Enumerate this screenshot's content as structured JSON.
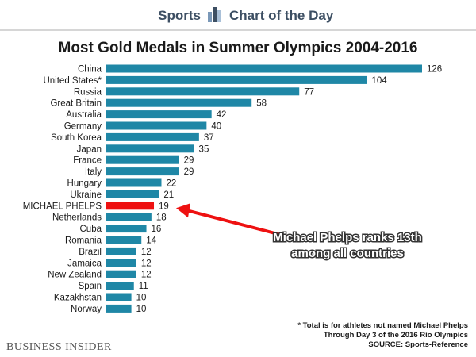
{
  "header": {
    "left_label": "Sports",
    "right_label": "Chart of the Day"
  },
  "brand": "BUSINESS INSIDER",
  "footnotes": [
    "* Total is for athletes not named Michael Phelps",
    "Through Day 3 of the 2016 Rio Olympics",
    "SOURCE: Sports-Reference"
  ],
  "annotation": {
    "lines": [
      "Michael Phelps ranks 13th",
      "among all countries"
    ],
    "target": "MICHAEL PHELPS"
  },
  "colors": {
    "bar": "#1f87a6",
    "highlight": "#ee1111",
    "arrow": "#ee1111",
    "header_text": "#3d4f63",
    "header_rule": "#c8c8c8"
  },
  "chart_data": {
    "type": "bar",
    "orientation": "horizontal",
    "title": "Most Gold Medals in Summer Olympics 2004-2016",
    "categories": [
      "China",
      "United States*",
      "Russia",
      "Great Britain",
      "Australia",
      "Germany",
      "South Korea",
      "Japan",
      "France",
      "Italy",
      "Hungary",
      "Ukraine",
      "MICHAEL PHELPS",
      "Netherlands",
      "Cuba",
      "Romania",
      "Brazil",
      "Jamaica",
      "New Zealand",
      "Spain",
      "Kazakhstan",
      "Norway"
    ],
    "values": [
      126,
      104,
      77,
      58,
      42,
      40,
      37,
      35,
      29,
      29,
      22,
      21,
      19,
      18,
      16,
      14,
      12,
      12,
      12,
      11,
      10,
      10
    ],
    "highlight": "MICHAEL PHELPS",
    "xlim": [
      0,
      126
    ],
    "grid": false,
    "legend": "none"
  }
}
